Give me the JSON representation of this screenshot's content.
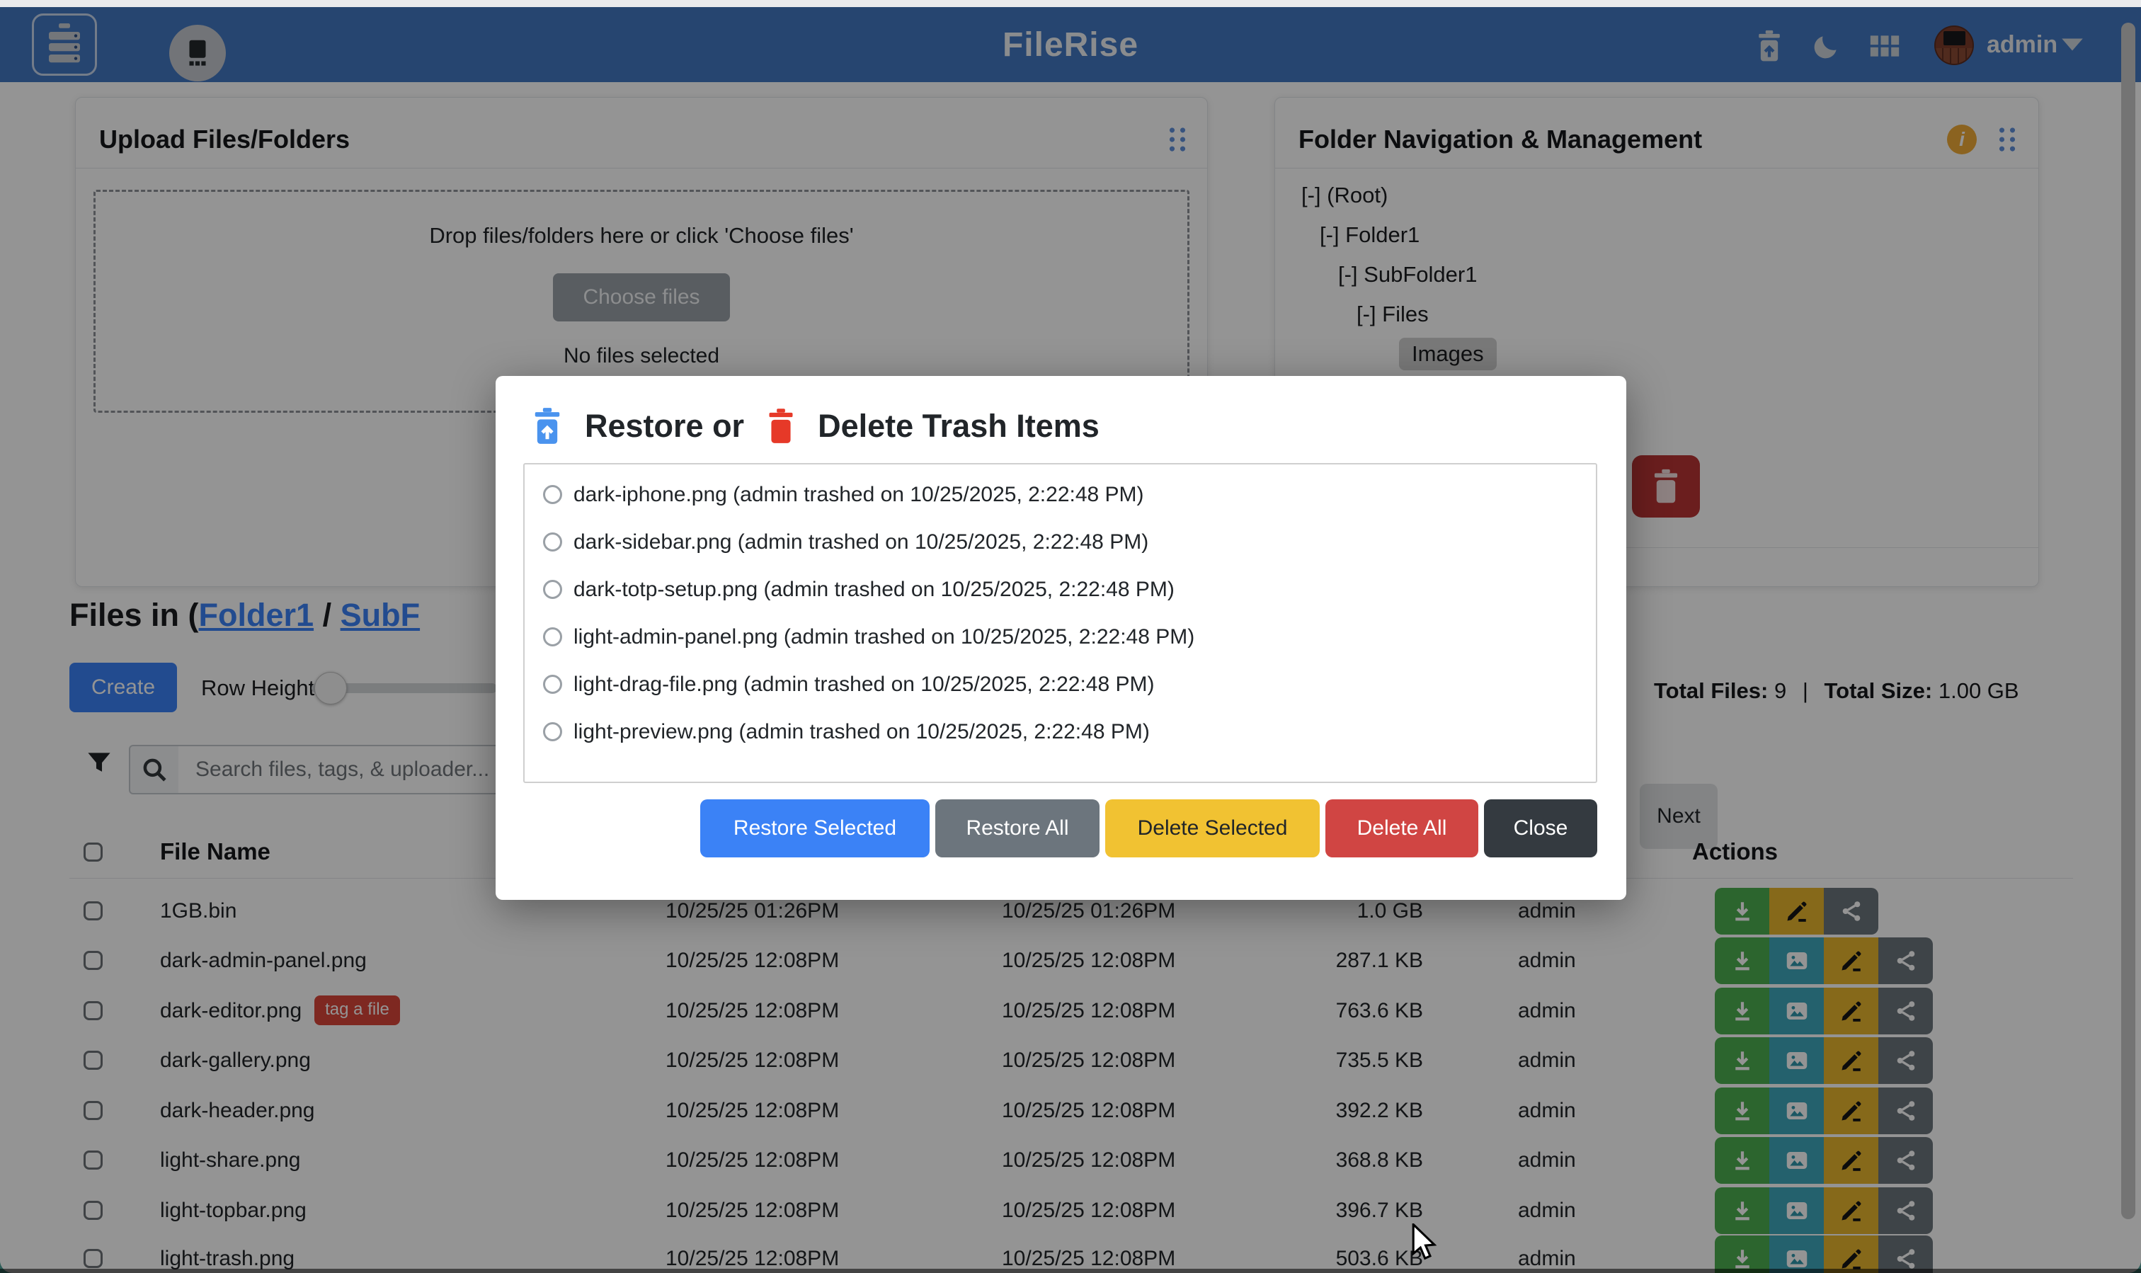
{
  "colors": {
    "header_blue": "#4377c2",
    "primary": "#3b82f6",
    "secondary": "#6c757d",
    "success": "#4caf50",
    "info": "#3fa8bc",
    "warning": "#e7b52e",
    "modal_warning": "#f1c232",
    "danger": "#d04543",
    "dark": "#343a40",
    "tag_red": "#d9463a",
    "folder_delete_red": "#b83434"
  },
  "header": {
    "title": "FileRise",
    "user": "admin",
    "icons": [
      "server-logo-icon",
      "scanner-icon",
      "trash-restore-icon",
      "moon-icon",
      "grid-icon",
      "avatar",
      "caret-down-icon"
    ]
  },
  "upload_card": {
    "title": "Upload Files/Folders",
    "dropzone_text": "Drop files/folders here or click 'Choose files'",
    "choose_button": "Choose files",
    "no_files": "No files selected"
  },
  "folder_card": {
    "title": "Folder Navigation & Management",
    "info_icon": "i",
    "tree": [
      {
        "label": "[-] (Root)",
        "selected": false
      },
      {
        "label": "[-] Folder1",
        "selected": false
      },
      {
        "label": "[-] SubFolder1",
        "selected": false
      },
      {
        "label": "[-] Files",
        "selected": false
      },
      {
        "label": "Images",
        "selected": true
      }
    ]
  },
  "files_section": {
    "heading_prefix": "Files in (",
    "breadcrumb_link_1": "Folder1",
    "separator": " / ",
    "breadcrumb_link_2": "SubF",
    "create_button": "Create",
    "row_height_label": "Row Height:",
    "search_placeholder": "Search files, tags, & uploader...",
    "total_files_label": "Total Files:",
    "total_files_value": "9",
    "pipe": "|",
    "total_size_label": "Total Size:",
    "total_size_value": "1.00 GB",
    "next_button": "Next"
  },
  "table": {
    "columns": {
      "file_name": "File Name",
      "actions": "Actions"
    },
    "rows": [
      {
        "name": "1GB.bin",
        "tag": "",
        "modified": "10/25/25 01:26PM",
        "uploaded": "10/25/25 01:26PM",
        "size": "1.0 GB",
        "uploader": "admin",
        "actions": [
          "download",
          "edit",
          "share"
        ]
      },
      {
        "name": "dark-admin-panel.png",
        "tag": "",
        "modified": "10/25/25 12:08PM",
        "uploaded": "10/25/25 12:08PM",
        "size": "287.1 KB",
        "uploader": "admin",
        "actions": [
          "download",
          "preview",
          "edit",
          "share"
        ]
      },
      {
        "name": "dark-editor.png",
        "tag": "tag a file",
        "modified": "10/25/25 12:08PM",
        "uploaded": "10/25/25 12:08PM",
        "size": "763.6 KB",
        "uploader": "admin",
        "actions": [
          "download",
          "preview",
          "edit",
          "share"
        ]
      },
      {
        "name": "dark-gallery.png",
        "tag": "",
        "modified": "10/25/25 12:08PM",
        "uploaded": "10/25/25 12:08PM",
        "size": "735.5 KB",
        "uploader": "admin",
        "actions": [
          "download",
          "preview",
          "edit",
          "share"
        ]
      },
      {
        "name": "dark-header.png",
        "tag": "",
        "modified": "10/25/25 12:08PM",
        "uploaded": "10/25/25 12:08PM",
        "size": "392.2 KB",
        "uploader": "admin",
        "actions": [
          "download",
          "preview",
          "edit",
          "share"
        ]
      },
      {
        "name": "light-share.png",
        "tag": "",
        "modified": "10/25/25 12:08PM",
        "uploaded": "10/25/25 12:08PM",
        "size": "368.8 KB",
        "uploader": "admin",
        "actions": [
          "download",
          "preview",
          "edit",
          "share"
        ]
      },
      {
        "name": "light-topbar.png",
        "tag": "",
        "modified": "10/25/25 12:08PM",
        "uploaded": "10/25/25 12:08PM",
        "size": "396.7 KB",
        "uploader": "admin",
        "actions": [
          "download",
          "preview",
          "edit",
          "share"
        ]
      },
      {
        "name": "light-trash.png",
        "tag": "",
        "modified": "10/25/25 12:08PM",
        "uploaded": "10/25/25 12:08PM",
        "size": "503.6 KB",
        "uploader": "admin",
        "actions": [
          "download",
          "preview",
          "edit",
          "share"
        ]
      }
    ]
  },
  "modal": {
    "title_restore": "Restore or",
    "title_delete": "Delete Trash Items",
    "items": [
      "dark-iphone.png (admin trashed on 10/25/2025, 2:22:48 PM)",
      "dark-sidebar.png (admin trashed on 10/25/2025, 2:22:48 PM)",
      "dark-totp-setup.png (admin trashed on 10/25/2025, 2:22:48 PM)",
      "light-admin-panel.png (admin trashed on 10/25/2025, 2:22:48 PM)",
      "light-drag-file.png (admin trashed on 10/25/2025, 2:22:48 PM)",
      "light-preview.png (admin trashed on 10/25/2025, 2:22:48 PM)"
    ],
    "buttons": [
      {
        "id": "restore-selected",
        "label": "Restore Selected"
      },
      {
        "id": "restore-all",
        "label": "Restore All"
      },
      {
        "id": "delete-selected",
        "label": "Delete Selected"
      },
      {
        "id": "delete-all",
        "label": "Delete All"
      },
      {
        "id": "close",
        "label": "Close"
      }
    ]
  }
}
